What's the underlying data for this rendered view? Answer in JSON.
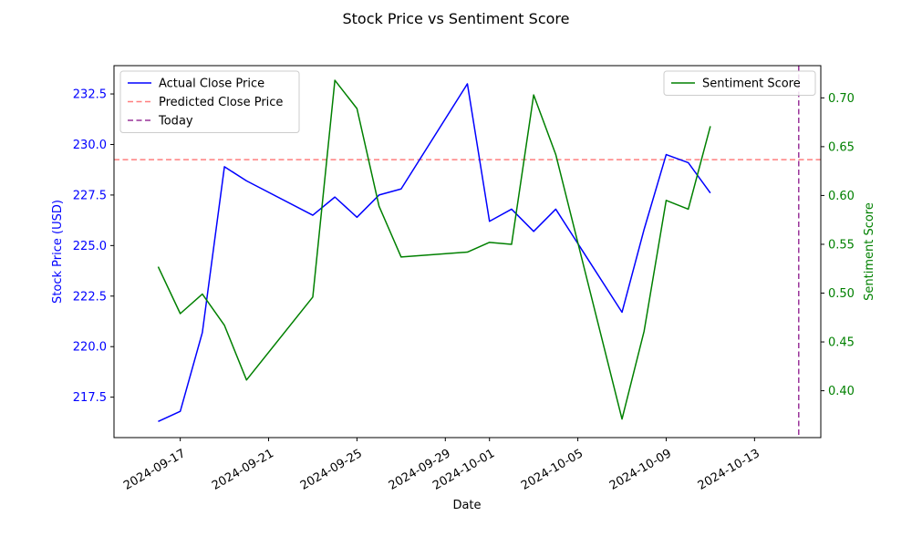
{
  "chart_data": {
    "type": "line",
    "title": "Stock Price vs Sentiment Score",
    "xlabel": "Date",
    "ylabel_left": "Stock Price (USD)",
    "ylabel_right": "Sentiment Score",
    "xlim": [
      "2024-09-14",
      "2024-10-16"
    ],
    "ylim_left": [
      215.5,
      233.9
    ],
    "ylim_right": [
      0.352,
      0.733
    ],
    "x_ticks": [
      "2024-09-17",
      "2024-09-21",
      "2024-09-25",
      "2024-09-29",
      "2024-10-01",
      "2024-10-05",
      "2024-10-09",
      "2024-10-13"
    ],
    "y_ticks_left": [
      "217.5",
      "220.0",
      "222.5",
      "225.0",
      "227.5",
      "230.0",
      "232.5"
    ],
    "y_ticks_right": [
      "0.40",
      "0.45",
      "0.50",
      "0.55",
      "0.60",
      "0.65",
      "0.70"
    ],
    "dates": [
      "2024-09-16",
      "2024-09-17",
      "2024-09-18",
      "2024-09-19",
      "2024-09-20",
      "2024-09-23",
      "2024-09-24",
      "2024-09-25",
      "2024-09-26",
      "2024-09-27",
      "2024-09-30",
      "2024-10-01",
      "2024-10-02",
      "2024-10-03",
      "2024-10-04",
      "2024-10-07",
      "2024-10-08",
      "2024-10-09",
      "2024-10-10",
      "2024-10-11"
    ],
    "series": [
      {
        "name": "Actual Close Price",
        "axis": "left",
        "color": "#0000ff",
        "values": [
          216.3,
          216.8,
          220.7,
          228.9,
          228.2,
          226.5,
          227.4,
          226.4,
          227.5,
          227.8,
          233.0,
          226.2,
          226.8,
          225.7,
          226.8,
          221.7,
          225.8,
          229.5,
          229.1,
          227.6
        ]
      },
      {
        "name": "Sentiment Score",
        "axis": "right",
        "color": "#008000",
        "values": [
          0.527,
          0.479,
          0.499,
          0.467,
          0.411,
          0.496,
          0.718,
          0.689,
          0.589,
          0.537,
          0.542,
          0.552,
          0.55,
          0.703,
          0.642,
          0.371,
          0.461,
          0.595,
          0.586,
          0.671
        ]
      }
    ],
    "hlines": [
      {
        "name": "Predicted Close Price",
        "axis": "left",
        "value": 229.25,
        "color": "#ff7f7f",
        "style": "dashed"
      }
    ],
    "vlines": [
      {
        "name": "Today",
        "date": "2024-10-15",
        "color": "#993399",
        "style": "dashed"
      }
    ],
    "legends": [
      {
        "placement": "upper-left",
        "entries": [
          "Actual Close Price",
          "Predicted Close Price",
          "Today"
        ]
      },
      {
        "placement": "upper-right",
        "entries": [
          "Sentiment Score"
        ]
      }
    ],
    "grid": false,
    "colors": {
      "left_axis": "#0000ff",
      "right_axis": "#008000"
    }
  }
}
